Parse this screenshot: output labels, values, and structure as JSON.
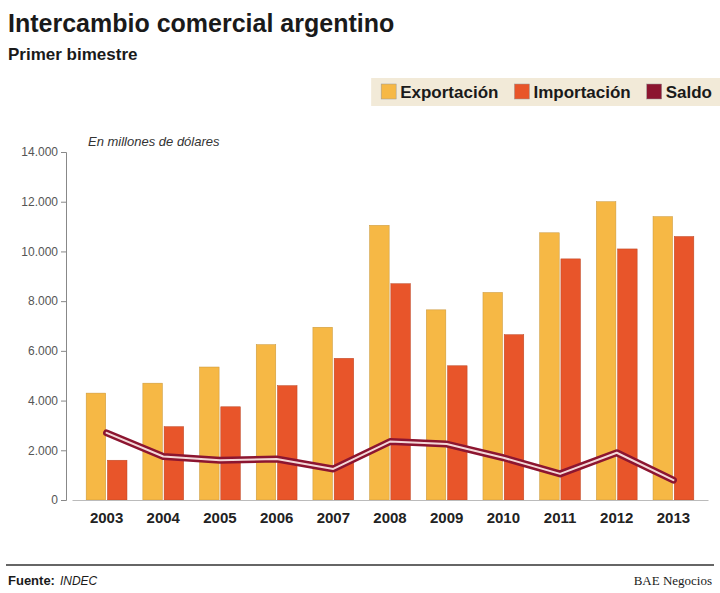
{
  "chart_data": {
    "type": "bar",
    "title": "Intercambio comercial argentino",
    "subtitle": "Primer bimestre",
    "annotations": [
      "En millones de dólares"
    ],
    "source_label": "Fuente:",
    "source": "INDEC",
    "credit": "BAE Negocios",
    "categories": [
      "2003",
      "2004",
      "2005",
      "2006",
      "2007",
      "2008",
      "2009",
      "2010",
      "2011",
      "2012",
      "2013"
    ],
    "series": [
      {
        "name": "Exportación",
        "color": "#f6b845",
        "type": "bar",
        "values": [
          4300,
          4700,
          5350,
          6250,
          6950,
          11050,
          7650,
          8350,
          10750,
          12000,
          11400
        ]
      },
      {
        "name": "Importación",
        "color": "#e8552a",
        "type": "bar",
        "values": [
          1600,
          2950,
          3750,
          4600,
          5700,
          8700,
          5400,
          6650,
          9700,
          10100,
          10600
        ]
      },
      {
        "name": "Saldo",
        "color": "#8c1530",
        "type": "line",
        "values": [
          2700,
          1750,
          1600,
          1650,
          1250,
          2350,
          2250,
          1700,
          1050,
          1900,
          800
        ]
      }
    ],
    "ylim": [
      0,
      14000
    ],
    "yticks": [
      0,
      {
        "value": 2000,
        "label": "2.000"
      },
      {
        "value": 4000,
        "label": "4.000"
      },
      {
        "value": 6000,
        "label": "6.000"
      },
      {
        "value": 8000,
        "label": "8.000"
      },
      {
        "value": 10000,
        "label": "10.000"
      },
      {
        "value": 12000,
        "label": "12.000"
      },
      {
        "value": 14000,
        "label": "14.000"
      }
    ],
    "grid": false,
    "legend": "top-right"
  }
}
